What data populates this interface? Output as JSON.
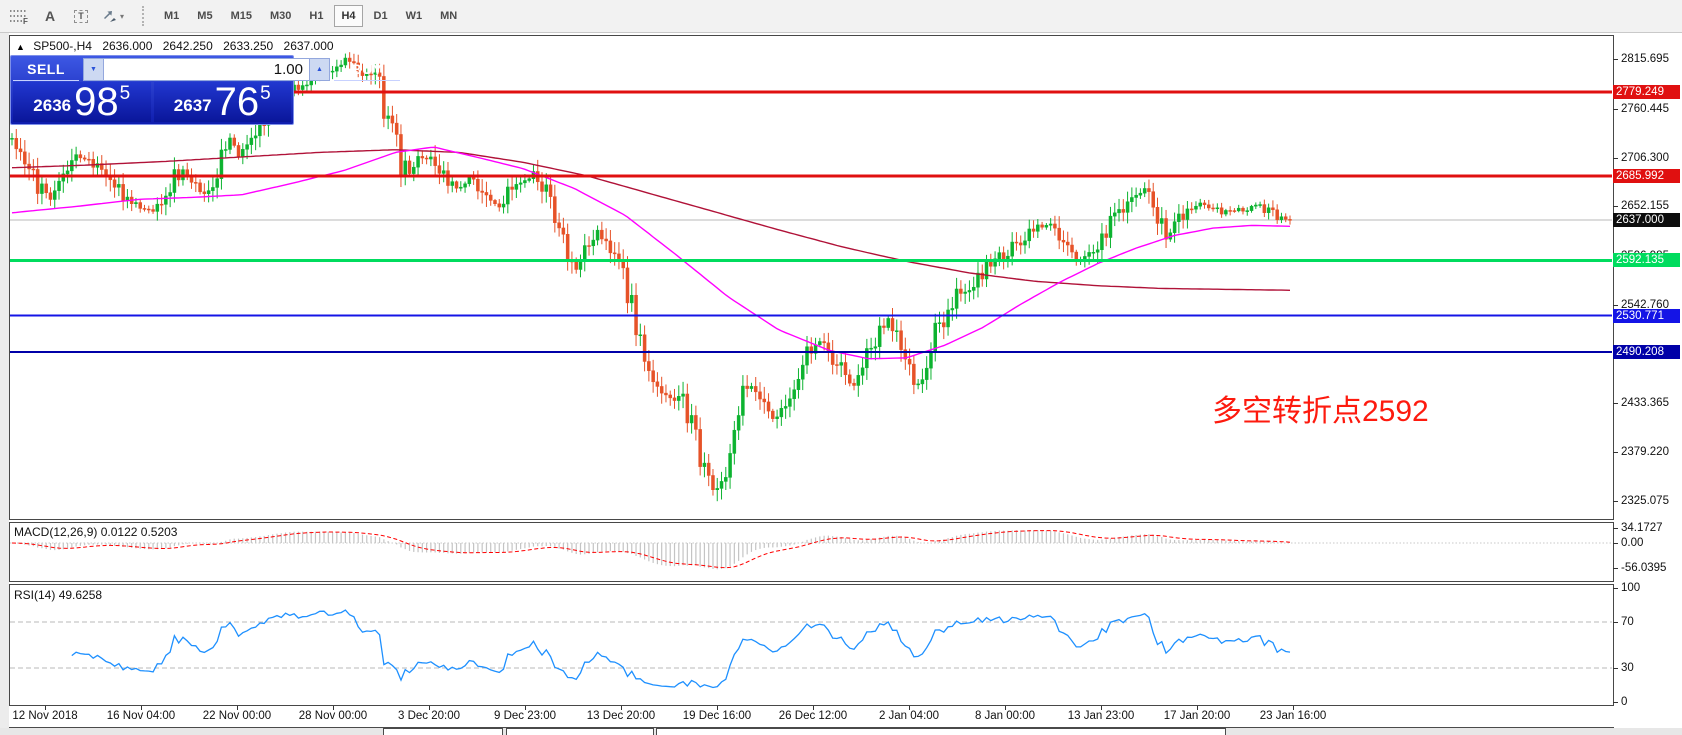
{
  "toolbar": {
    "tools": [
      {
        "name": "fibonacci-retracement-icon"
      },
      {
        "name": "text-label-icon",
        "glyph": "A"
      },
      {
        "name": "text-box-icon",
        "glyph": "T"
      },
      {
        "name": "objects-arrows-icon",
        "caret": "▾"
      }
    ],
    "timeframes": [
      "M1",
      "M5",
      "M15",
      "M30",
      "H1",
      "H4",
      "D1",
      "W1",
      "MN"
    ],
    "active_timeframe": "H4"
  },
  "chart_header": {
    "collapse_glyph": "▲",
    "title": "SP500-,H4",
    "open": "2636.000",
    "high": "2642.250",
    "low": "2633.250",
    "close": "2637.000"
  },
  "trade_panel": {
    "sell_label": "SELL",
    "buy_label": "BUY",
    "volume": "1.00",
    "spin_down_glyph": "▼",
    "spin_up_glyph": "▲",
    "sell_price_small": "2636",
    "sell_price_big": "98",
    "sell_price_sup": "5",
    "buy_price_small": "2637",
    "buy_price_big": "76",
    "buy_price_sup": "5"
  },
  "annotation": {
    "text": "多空转折点2592",
    "color": "#fd1a0e"
  },
  "price_axis": {
    "ticks": [
      "2815.695",
      "2760.445",
      "2706.300",
      "2652.155",
      "2596.985",
      "2542.760",
      "2433.365",
      "2379.220",
      "2325.075"
    ]
  },
  "current_price": {
    "label": "2637.000",
    "value": 2637.0,
    "badge_bg": "#0d0d0d",
    "line_color": "#b8b8b8"
  },
  "hlines": [
    {
      "label": "2779.249",
      "value": 2779.249,
      "color": "#e01010",
      "width": 3
    },
    {
      "label": "2685.992",
      "value": 2685.992,
      "color": "#e01010",
      "width": 3
    },
    {
      "label": "2592.135",
      "value": 2592.135,
      "color": "#00dc5e",
      "width": 3
    },
    {
      "label": "2530.771",
      "value": 2530.771,
      "color": "#1414e6",
      "width": 2
    },
    {
      "label": "2490.208",
      "value": 2490.208,
      "color": "#0000a8",
      "width": 2
    }
  ],
  "macd_panel": {
    "label": "MACD(12,26,9)",
    "value_main": "0.0122",
    "value_signal": "0.5203",
    "ticks": [
      {
        "label": "34.1727",
        "value": 34.1727
      },
      {
        "label": "0.00",
        "value": 0
      },
      {
        "label": "-56.0395",
        "value": -56.0395
      }
    ]
  },
  "rsi_panel": {
    "label": "RSI(14)",
    "value": "49.6258",
    "ticks": [
      {
        "label": "100",
        "value": 100
      },
      {
        "label": "70",
        "value": 70
      },
      {
        "label": "30",
        "value": 30
      },
      {
        "label": "0",
        "value": 0
      }
    ],
    "levels": [
      70,
      30
    ]
  },
  "time_axis": {
    "labels": [
      "12 Nov 2018",
      "16 Nov 04:00",
      "22 Nov 00:00",
      "28 Nov 00:00",
      "3 Dec 20:00",
      "9 Dec 23:00",
      "13 Dec 20:00",
      "19 Dec 16:00",
      "26 Dec 12:00",
      "2 Jan 04:00",
      "8 Jan 00:00",
      "13 Jan 23:00",
      "17 Jan 20:00",
      "23 Jan 16:00"
    ]
  },
  "chart_data": {
    "type": "candlestick",
    "symbol": "SP500-",
    "timeframe": "H4",
    "bars": 300,
    "last_close": 2637.0,
    "up_color": "#0db330",
    "down_color": "#e65228",
    "price_line_color": "#b8b8b8",
    "price_waypoints": [
      [
        0.0,
        2728
      ],
      [
        0.006,
        2720
      ],
      [
        0.014,
        2698
      ],
      [
        0.022,
        2672
      ],
      [
        0.03,
        2660
      ],
      [
        0.038,
        2680
      ],
      [
        0.046,
        2702
      ],
      [
        0.056,
        2708
      ],
      [
        0.066,
        2698
      ],
      [
        0.076,
        2686
      ],
      [
        0.086,
        2662
      ],
      [
        0.096,
        2652
      ],
      [
        0.108,
        2648
      ],
      [
        0.118,
        2652
      ],
      [
        0.126,
        2682
      ],
      [
        0.134,
        2690
      ],
      [
        0.142,
        2672
      ],
      [
        0.152,
        2668
      ],
      [
        0.162,
        2700
      ],
      [
        0.17,
        2726
      ],
      [
        0.178,
        2708
      ],
      [
        0.188,
        2732
      ],
      [
        0.2,
        2755
      ],
      [
        0.215,
        2780
      ],
      [
        0.235,
        2795
      ],
      [
        0.252,
        2808
      ],
      [
        0.262,
        2815
      ],
      [
        0.272,
        2800
      ],
      [
        0.285,
        2795
      ],
      [
        0.296,
        2742
      ],
      [
        0.304,
        2700
      ],
      [
        0.312,
        2688
      ],
      [
        0.32,
        2712
      ],
      [
        0.33,
        2702
      ],
      [
        0.34,
        2682
      ],
      [
        0.35,
        2672
      ],
      [
        0.36,
        2688
      ],
      [
        0.37,
        2660
      ],
      [
        0.38,
        2652
      ],
      [
        0.39,
        2670
      ],
      [
        0.4,
        2682
      ],
      [
        0.41,
        2688
      ],
      [
        0.42,
        2658
      ],
      [
        0.43,
        2622
      ],
      [
        0.44,
        2580
      ],
      [
        0.448,
        2598
      ],
      [
        0.458,
        2625
      ],
      [
        0.466,
        2612
      ],
      [
        0.474,
        2580
      ],
      [
        0.482,
        2552
      ],
      [
        0.49,
        2508
      ],
      [
        0.498,
        2478
      ],
      [
        0.506,
        2452
      ],
      [
        0.514,
        2442
      ],
      [
        0.524,
        2438
      ],
      [
        0.532,
        2400
      ],
      [
        0.542,
        2360
      ],
      [
        0.55,
        2330
      ],
      [
        0.556,
        2352
      ],
      [
        0.564,
        2405
      ],
      [
        0.572,
        2448
      ],
      [
        0.58,
        2455
      ],
      [
        0.588,
        2430
      ],
      [
        0.596,
        2415
      ],
      [
        0.604,
        2438
      ],
      [
        0.614,
        2465
      ],
      [
        0.624,
        2492
      ],
      [
        0.632,
        2502
      ],
      [
        0.64,
        2490
      ],
      [
        0.65,
        2465
      ],
      [
        0.658,
        2452
      ],
      [
        0.666,
        2470
      ],
      [
        0.676,
        2505
      ],
      [
        0.686,
        2530
      ],
      [
        0.694,
        2508
      ],
      [
        0.7,
        2478
      ],
      [
        0.706,
        2448
      ],
      [
        0.712,
        2462
      ],
      [
        0.72,
        2500
      ],
      [
        0.728,
        2528
      ],
      [
        0.736,
        2548
      ],
      [
        0.746,
        2560
      ],
      [
        0.756,
        2575
      ],
      [
        0.766,
        2588
      ],
      [
        0.776,
        2598
      ],
      [
        0.786,
        2610
      ],
      [
        0.796,
        2622
      ],
      [
        0.806,
        2632
      ],
      [
        0.816,
        2625
      ],
      [
        0.826,
        2605
      ],
      [
        0.834,
        2592
      ],
      [
        0.842,
        2605
      ],
      [
        0.852,
        2612
      ],
      [
        0.862,
        2638
      ],
      [
        0.872,
        2655
      ],
      [
        0.882,
        2668
      ],
      [
        0.89,
        2672
      ],
      [
        0.898,
        2640
      ],
      [
        0.904,
        2615
      ],
      [
        0.91,
        2632
      ],
      [
        0.918,
        2645
      ],
      [
        0.926,
        2650
      ],
      [
        0.934,
        2655
      ],
      [
        0.942,
        2648
      ],
      [
        0.95,
        2645
      ],
      [
        0.958,
        2650
      ],
      [
        0.966,
        2648
      ],
      [
        0.974,
        2652
      ],
      [
        0.982,
        2648
      ],
      [
        0.99,
        2640
      ],
      [
        1.0,
        2637
      ]
    ],
    "ma_fast": {
      "color": "#ff00ff",
      "points": [
        [
          0.0,
          2645
        ],
        [
          0.05,
          2652
        ],
        [
          0.1,
          2660
        ],
        [
          0.14,
          2662
        ],
        [
          0.18,
          2665
        ],
        [
          0.22,
          2678
        ],
        [
          0.26,
          2692
        ],
        [
          0.3,
          2712
        ],
        [
          0.33,
          2718
        ],
        [
          0.36,
          2708
        ],
        [
          0.4,
          2694
        ],
        [
          0.44,
          2672
        ],
        [
          0.48,
          2642
        ],
        [
          0.52,
          2598
        ],
        [
          0.56,
          2552
        ],
        [
          0.6,
          2515
        ],
        [
          0.64,
          2492
        ],
        [
          0.67,
          2483
        ],
        [
          0.7,
          2484
        ],
        [
          0.73,
          2498
        ],
        [
          0.76,
          2518
        ],
        [
          0.79,
          2544
        ],
        [
          0.82,
          2568
        ],
        [
          0.85,
          2589
        ],
        [
          0.88,
          2606
        ],
        [
          0.91,
          2620
        ],
        [
          0.94,
          2628
        ],
        [
          0.97,
          2631
        ],
        [
          1.0,
          2630
        ]
      ]
    },
    "ma_slow": {
      "color": "#b01238",
      "points": [
        [
          0.0,
          2695
        ],
        [
          0.06,
          2698
        ],
        [
          0.12,
          2702
        ],
        [
          0.18,
          2707
        ],
        [
          0.24,
          2712
        ],
        [
          0.3,
          2715
        ],
        [
          0.35,
          2712
        ],
        [
          0.4,
          2701
        ],
        [
          0.45,
          2686
        ],
        [
          0.5,
          2666
        ],
        [
          0.55,
          2646
        ],
        [
          0.6,
          2626
        ],
        [
          0.65,
          2607
        ],
        [
          0.7,
          2591
        ],
        [
          0.75,
          2578
        ],
        [
          0.8,
          2569
        ],
        [
          0.85,
          2564
        ],
        [
          0.9,
          2561
        ],
        [
          0.95,
          2560
        ],
        [
          1.0,
          2559
        ]
      ]
    },
    "macd": {
      "fast": 12,
      "slow": 26,
      "signal": 9,
      "hist_color": "#c4c4c4",
      "signal_color": "#ff0000"
    },
    "rsi": {
      "period": 14,
      "color": "#1e90ff",
      "level_color": "#b8b8b8"
    }
  }
}
